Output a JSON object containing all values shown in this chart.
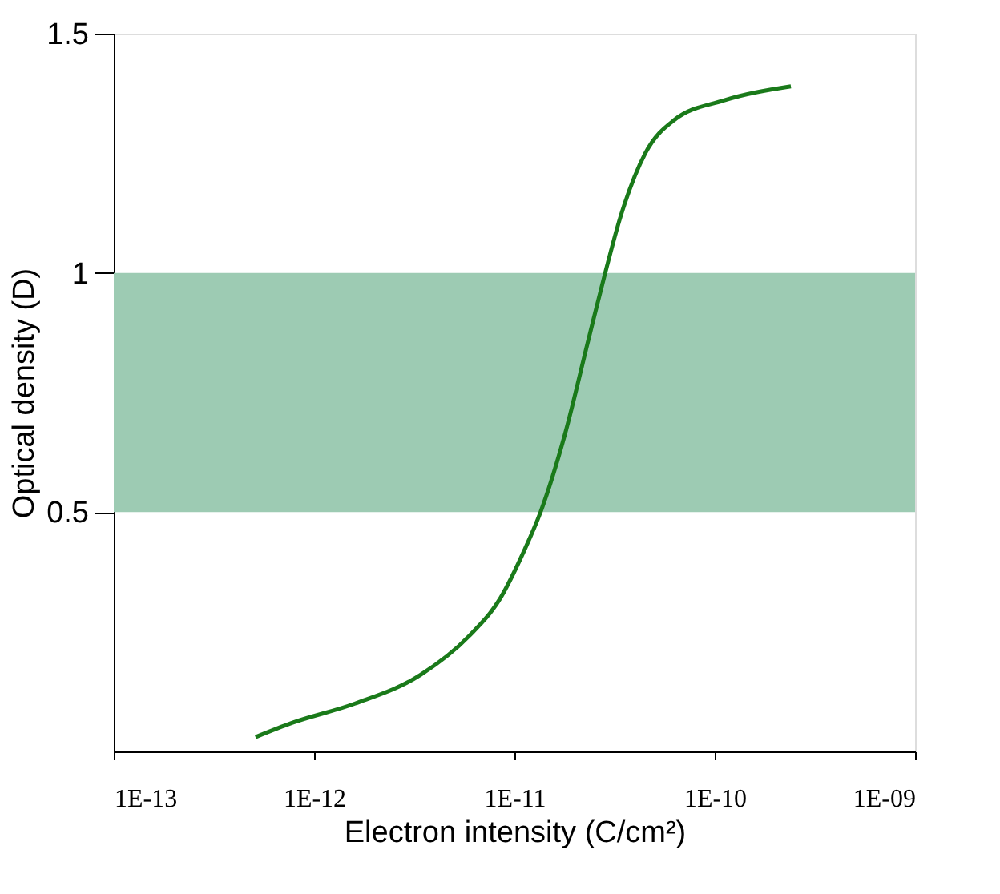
{
  "chart_data": {
    "type": "line",
    "xlabel": "Electron intensity (C/cm²)",
    "ylabel": "Optical density (D)",
    "log": "x",
    "grid": false,
    "marker": "none",
    "line_style": "solid",
    "xlim": [
      1e-13,
      1e-09
    ],
    "xticks": [
      {
        "value": 1e-13,
        "label": "1E-13"
      },
      {
        "value": 1e-12,
        "label": "1E-12"
      },
      {
        "value": 1e-11,
        "label": "1E-11"
      },
      {
        "value": 1e-10,
        "label": "1E-10"
      },
      {
        "value": 1e-09,
        "label": "1E-09"
      }
    ],
    "ylim": [
      0,
      1.5
    ],
    "yticks": [
      0.5,
      1,
      1.5
    ],
    "bands": [
      {
        "axis": "y",
        "from": 0.5,
        "to": 1,
        "color": "#9dcbb3"
      }
    ],
    "series": [
      {
        "color": "#1a7a1a",
        "x": [
          5.1e-13,
          7.8e-13,
          1.6e-12,
          3.4e-12,
          5.9e-12,
          8.5e-12,
          1.12e-11,
          1.35e-11,
          1.78e-11,
          2.34e-11,
          2.8e-11,
          3.4e-11,
          4.5e-11,
          6.3e-11,
          1.1e-10,
          2.4e-10
        ],
        "values": [
          0.03,
          0.06,
          0.1,
          0.16,
          0.24,
          0.32,
          0.42,
          0.5,
          0.66,
          0.86,
          0.99,
          1.12,
          1.25,
          1.32,
          1.36,
          1.39
        ]
      }
    ]
  }
}
